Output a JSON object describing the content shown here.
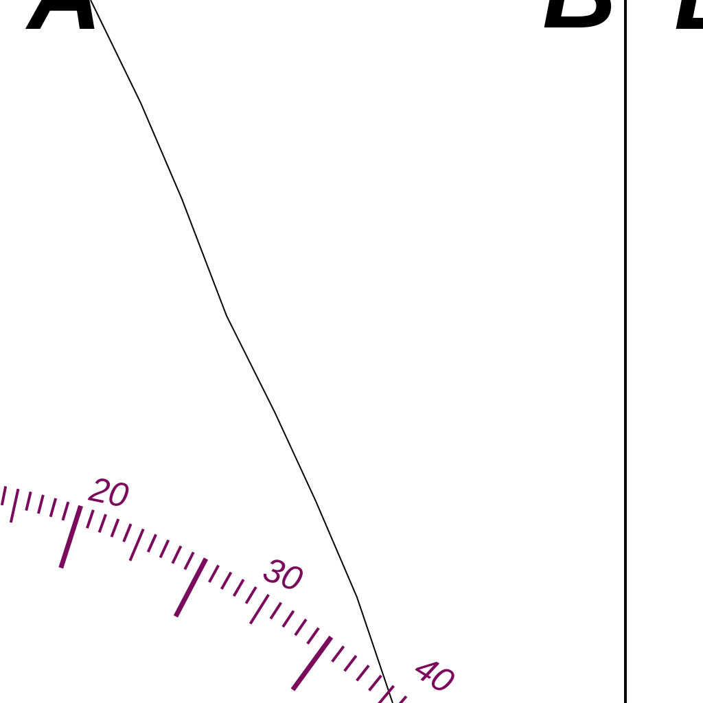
{
  "colors": {
    "ink": "#000000",
    "scale": "#7a0a5c",
    "background": "#ffffff"
  },
  "letters": {
    "left": "A",
    "right": "B",
    "far_right": "B"
  },
  "scale": {
    "labels": [
      "20",
      "30",
      "40"
    ]
  }
}
